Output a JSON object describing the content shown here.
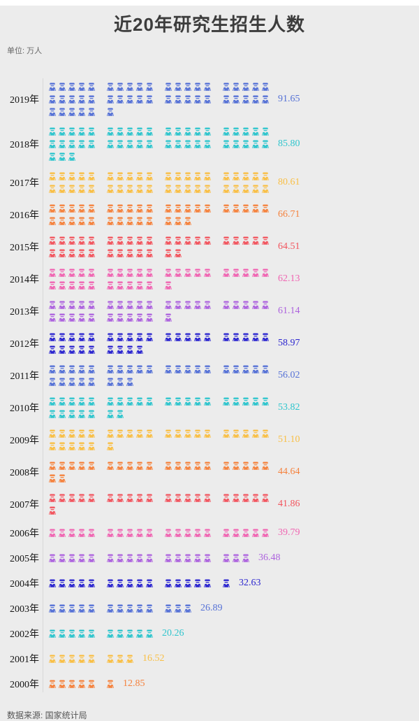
{
  "header": {
    "title": "近20年研究生招生人数",
    "unit_label": "单位: 万人"
  },
  "footer": {
    "source_label": "数据来源: 国家统计局"
  },
  "chart_data": {
    "type": "bar",
    "subtype": "pictogram",
    "title": "近20年研究生招生人数",
    "unit": "万人",
    "value_per_icon": 2,
    "icons_per_line": 20,
    "group_size": 5,
    "icon_glyph": "person-icon",
    "background_color": "#ececec",
    "axis_line_color": "#d8d8d8",
    "palette_cycle": [
      "#5571D6",
      "#2EC5CD",
      "#F9BF45",
      "#F5823D",
      "#F2555E",
      "#F065B2",
      "#AD63DE",
      "#2B25CF"
    ],
    "categories": [
      "2019年",
      "2018年",
      "2017年",
      "2016年",
      "2015年",
      "2014年",
      "2013年",
      "2012年",
      "2011年",
      "2010年",
      "2009年",
      "2008年",
      "2007年",
      "2006年",
      "2005年",
      "2004年",
      "2003年",
      "2002年",
      "2001年",
      "2000年"
    ],
    "values": [
      91.65,
      85.8,
      80.61,
      66.71,
      64.51,
      62.13,
      61.14,
      58.97,
      56.02,
      53.82,
      51.1,
      44.64,
      41.86,
      39.79,
      36.48,
      32.63,
      26.89,
      20.26,
      16.52,
      12.85
    ],
    "rows": [
      {
        "year": "2019年",
        "value_label": "91.65",
        "icons": 46,
        "color": "#5571D6"
      },
      {
        "year": "2018年",
        "value_label": "85.80",
        "icons": 43,
        "color": "#2EC5CD"
      },
      {
        "year": "2017年",
        "value_label": "80.61",
        "icons": 40,
        "color": "#F9BF45"
      },
      {
        "year": "2016年",
        "value_label": "66.71",
        "icons": 33,
        "color": "#F5823D"
      },
      {
        "year": "2015年",
        "value_label": "64.51",
        "icons": 32,
        "color": "#F2555E"
      },
      {
        "year": "2014年",
        "value_label": "62.13",
        "icons": 31,
        "color": "#F065B2"
      },
      {
        "year": "2013年",
        "value_label": "61.14",
        "icons": 31,
        "color": "#AD63DE"
      },
      {
        "year": "2012年",
        "value_label": "58.97",
        "icons": 29,
        "color": "#2B25CF"
      },
      {
        "year": "2011年",
        "value_label": "56.02",
        "icons": 28,
        "color": "#5571D6"
      },
      {
        "year": "2010年",
        "value_label": "53.82",
        "icons": 27,
        "color": "#2EC5CD"
      },
      {
        "year": "2009年",
        "value_label": "51.10",
        "icons": 26,
        "color": "#F9BF45"
      },
      {
        "year": "2008年",
        "value_label": "44.64",
        "icons": 22,
        "color": "#F5823D"
      },
      {
        "year": "2007年",
        "value_label": "41.86",
        "icons": 21,
        "color": "#F2555E"
      },
      {
        "year": "2006年",
        "value_label": "39.79",
        "icons": 20,
        "color": "#F065B2"
      },
      {
        "year": "2005年",
        "value_label": "36.48",
        "icons": 18,
        "color": "#AD63DE"
      },
      {
        "year": "2004年",
        "value_label": "32.63",
        "icons": 16,
        "color": "#2B25CF"
      },
      {
        "year": "2003年",
        "value_label": "26.89",
        "icons": 13,
        "color": "#5571D6"
      },
      {
        "year": "2002年",
        "value_label": "20.26",
        "icons": 10,
        "color": "#2EC5CD"
      },
      {
        "year": "2001年",
        "value_label": "16.52",
        "icons": 8,
        "color": "#F9BF45"
      },
      {
        "year": "2000年",
        "value_label": "12.85",
        "icons": 6,
        "color": "#F5823D"
      }
    ]
  }
}
